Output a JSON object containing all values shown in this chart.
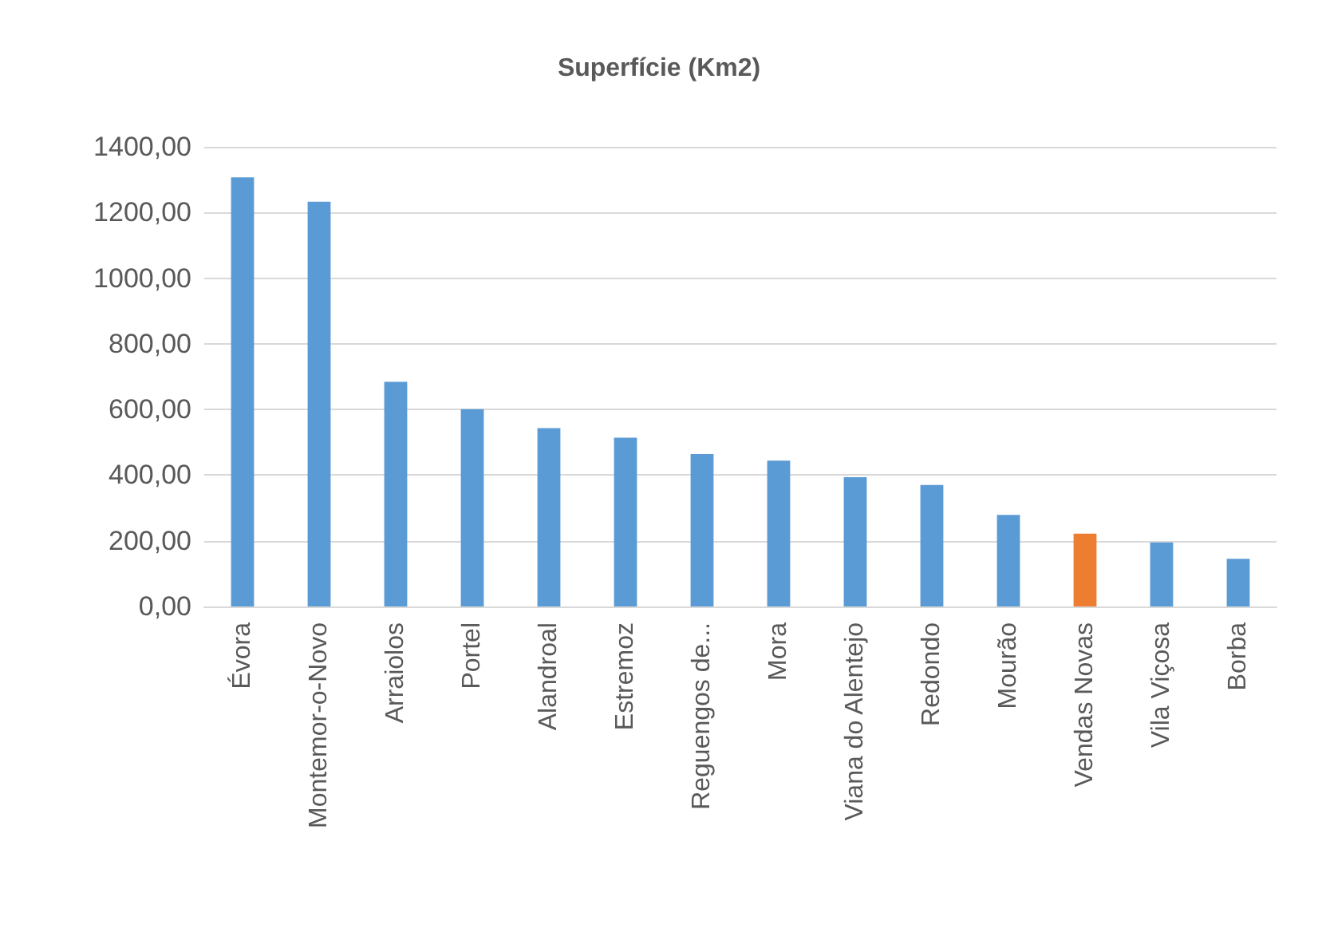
{
  "chart_data": {
    "type": "bar",
    "title": "Superfície (Km2)",
    "categories": [
      "Évora",
      "Montemor-o-Novo",
      "Arraiolos",
      "Portel",
      "Alandroal",
      "Estremoz",
      "Reguengos de...",
      "Mora",
      "Viana do Alentejo",
      "Redondo",
      "Mourão",
      "Vendas Novas",
      "Vila Viçosa",
      "Borba"
    ],
    "values": [
      1307,
      1233,
      684,
      601,
      543,
      514,
      464,
      444,
      394,
      370,
      279,
      222,
      195,
      145
    ],
    "colors": [
      "#5b9bd5",
      "#5b9bd5",
      "#5b9bd5",
      "#5b9bd5",
      "#5b9bd5",
      "#5b9bd5",
      "#5b9bd5",
      "#5b9bd5",
      "#5b9bd5",
      "#5b9bd5",
      "#5b9bd5",
      "#ed7d31",
      "#5b9bd5",
      "#5b9bd5"
    ],
    "ylim": [
      0,
      1400
    ],
    "yticks": [
      {
        "value": 0,
        "label": "0,00"
      },
      {
        "value": 200,
        "label": "200,00"
      },
      {
        "value": 400,
        "label": "400,00"
      },
      {
        "value": 600,
        "label": "600,00"
      },
      {
        "value": 800,
        "label": "800,00"
      },
      {
        "value": 1000,
        "label": "1000,00"
      },
      {
        "value": 1200,
        "label": "1200,00"
      },
      {
        "value": 1400,
        "label": "1400,00"
      }
    ],
    "grid": "y"
  }
}
